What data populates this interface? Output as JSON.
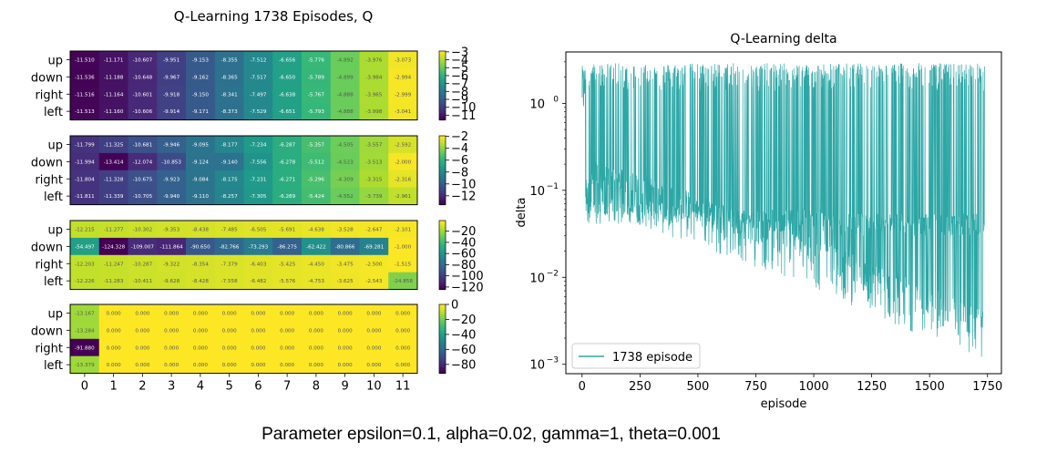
{
  "chart_data": [
    {
      "type": "heatmap",
      "title": "Q-Learning 1738 Episodes, Q",
      "row_labels": [
        "up",
        "down",
        "right",
        "left"
      ],
      "col_labels": [
        "0",
        "1",
        "2",
        "3",
        "4",
        "5",
        "6",
        "7",
        "8",
        "9",
        "10",
        "11"
      ],
      "panels": [
        {
          "name": "row-0",
          "colorbar_ticks": [
            "-3",
            "-4",
            "-5",
            "-6",
            "-7",
            "-8",
            "-9",
            "-10",
            "-11"
          ],
          "vmin": -11.6,
          "vmax": -2.9,
          "values": [
            [
              -11.51,
              -11.171,
              -10.607,
              -9.951,
              -9.153,
              -8.355,
              -7.512,
              -6.656,
              -5.776,
              -4.892,
              -3.976,
              -3.073
            ],
            [
              -11.536,
              -11.188,
              -10.648,
              -9.967,
              -9.162,
              -8.365,
              -7.517,
              -6.65,
              -5.789,
              -4.899,
              -3.984,
              -2.994
            ],
            [
              -11.516,
              -11.164,
              -10.601,
              -9.918,
              -9.15,
              -8.341,
              -7.497,
              -6.638,
              -5.767,
              -4.888,
              -3.965,
              -2.999
            ],
            [
              -11.513,
              -11.16,
              -10.606,
              -9.914,
              -9.171,
              -8.373,
              -7.529,
              -6.651,
              -5.793,
              -4.888,
              -3.998,
              -3.041
            ]
          ],
          "labels": [
            [
              "-11.510",
              "-11.171",
              "-10.607",
              "-9.951",
              "-9.153",
              "-8.355",
              "-7.512",
              "-6.656",
              "-5.776",
              "-4.892",
              "-3.976",
              "-3.073"
            ],
            [
              "-11.536",
              "-11.188",
              "-10.648",
              "-9.967",
              "-9.162",
              "-8.365",
              "-7.517",
              "-6.650",
              "-5.789",
              "-4.899",
              "-3.984",
              "-2.994"
            ],
            [
              "-11.516",
              "-11.164",
              "-10.601",
              "-9.918",
              "-9.150",
              "-8.341",
              "-7.497",
              "-6.638",
              "-5.767",
              "-4.888",
              "-3.965",
              "-2.999"
            ],
            [
              "-11.513",
              "-11.160",
              "-10.606",
              "-9.914",
              "-9.171",
              "-8.373",
              "-7.529",
              "-6.651",
              "-5.793",
              "-4.888",
              "-3.998",
              "-3.041"
            ]
          ]
        },
        {
          "name": "row-1",
          "colorbar_ticks": [
            "-2",
            "-4",
            "-6",
            "-8",
            "-10",
            "-12"
          ],
          "vmin": -13.5,
          "vmax": -1.9,
          "values": [
            [
              -11.799,
              -11.325,
              -10.681,
              -9.946,
              -9.095,
              -8.177,
              -7.234,
              -6.287,
              -5.357,
              -4.505,
              -3.557,
              -2.592
            ],
            [
              -11.994,
              -13.414,
              -12.074,
              -10.853,
              -9.124,
              -9.14,
              -7.556,
              -6.278,
              -5.512,
              -4.523,
              -3.513,
              -2.0
            ],
            [
              -11.804,
              -11.328,
              -10.675,
              -9.923,
              -9.084,
              -8.175,
              -7.231,
              -6.271,
              -5.296,
              -4.309,
              -3.315,
              -2.316
            ],
            [
              -11.811,
              -11.339,
              -10.705,
              -9.94,
              -9.11,
              -8.257,
              -7.305,
              -6.289,
              -5.424,
              -4.552,
              -3.739,
              -2.961
            ]
          ],
          "labels": [
            [
              "-11.799",
              "-11.325",
              "-10.681",
              "-9.946",
              "-9.095",
              "-8.177",
              "-7.234",
              "-6.287",
              "-5.357",
              "-4.505",
              "-3.557",
              "-2.592"
            ],
            [
              "-11.994",
              "-13.414",
              "-12.074",
              "-10.853",
              "-9.124",
              "-9.140",
              "-7.556",
              "-6.278",
              "-5.512",
              "-4.523",
              "-3.513",
              "-2.000"
            ],
            [
              "-11.804",
              "-11.328",
              "-10.675",
              "-9.923",
              "-9.084",
              "-8.175",
              "-7.231",
              "-6.271",
              "-5.296",
              "-4.309",
              "-3.315",
              "-2.316"
            ],
            [
              "-11.811",
              "-11.339",
              "-10.705",
              "-9.940",
              "-9.110",
              "-8.257",
              "-7.305",
              "-6.289",
              "-5.424",
              "-4.552",
              "-3.739",
              "-2.961"
            ]
          ]
        },
        {
          "name": "row-2",
          "colorbar_ticks": [
            "-20",
            "-40",
            "-60",
            "-80",
            "-100",
            "-120"
          ],
          "vmin": -124.4,
          "vmax": -1.0,
          "values": [
            [
              -12.215,
              -11.277,
              -10.302,
              -9.353,
              -8.438,
              -7.485,
              -6.505,
              -5.691,
              -4.638,
              -3.528,
              -2.647,
              -2.101
            ],
            [
              -54.497,
              -124.328,
              -109.007,
              -111.864,
              -90.65,
              -82.766,
              -73.293,
              -86.275,
              -62.422,
              -80.866,
              -69.281,
              -1.0
            ],
            [
              -12.203,
              -11.247,
              -10.287,
              -9.322,
              -8.354,
              -7.379,
              -6.403,
              -5.425,
              -4.45,
              -3.475,
              -2.5,
              -1.515
            ],
            [
              -12.226,
              -11.283,
              -10.411,
              -9.628,
              -8.428,
              -7.558,
              -6.482,
              -5.576,
              -4.753,
              -3.625,
              -2.543,
              -24.858
            ]
          ],
          "labels": [
            [
              "-12.215",
              "-11.277",
              "-10.302",
              "-9.353",
              "-8.438",
              "-7.485",
              "-6.505",
              "-5.691",
              "-4.638",
              "-3.528",
              "-2.647",
              "-2.101"
            ],
            [
              "-54.497",
              "-124.328",
              "-109.007",
              "-111.864",
              "-90.650",
              "-82.766",
              "-73.293",
              "-86.275",
              "-62.422",
              "-80.866",
              "-69.281",
              "-1.000"
            ],
            [
              "-12.203",
              "-11.247",
              "-10.287",
              "-9.322",
              "-8.354",
              "-7.379",
              "-6.403",
              "-5.425",
              "-4.450",
              "-3.475",
              "-2.500",
              "-1.515"
            ],
            [
              "-12.226",
              "-11.283",
              "-10.411",
              "-9.628",
              "-8.428",
              "-7.558",
              "-6.482",
              "-5.576",
              "-4.753",
              "-3.625",
              "-2.543",
              "-24.858"
            ]
          ]
        },
        {
          "name": "row-3",
          "colorbar_ticks": [
            "0",
            "-20",
            "-40",
            "-60",
            "-80"
          ],
          "vmin": -91.9,
          "vmax": 0,
          "values": [
            [
              -13.167,
              0,
              0,
              0,
              0,
              0,
              0,
              0,
              0,
              0,
              0,
              0
            ],
            [
              -13.284,
              0,
              0,
              0,
              0,
              0,
              0,
              0,
              0,
              0,
              0,
              0
            ],
            [
              -91.88,
              0,
              0,
              0,
              0,
              0,
              0,
              0,
              0,
              0,
              0,
              0
            ],
            [
              -13.379,
              0,
              0,
              0,
              0,
              0,
              0,
              0,
              0,
              0,
              0,
              0
            ]
          ],
          "labels": [
            [
              "-13.167",
              "0.000",
              "0.000",
              "0.000",
              "0.000",
              "0.000",
              "0.000",
              "0.000",
              "0.000",
              "0.000",
              "0.000",
              "0.000"
            ],
            [
              "-13.284",
              "0.000",
              "0.000",
              "0.000",
              "0.000",
              "0.000",
              "0.000",
              "0.000",
              "0.000",
              "0.000",
              "0.000",
              "0.000"
            ],
            [
              "-91.880",
              "0.000",
              "0.000",
              "0.000",
              "0.000",
              "0.000",
              "0.000",
              "0.000",
              "0.000",
              "0.000",
              "0.000",
              "0.000"
            ],
            [
              "-13.379",
              "0.000",
              "0.000",
              "0.000",
              "0.000",
              "0.000",
              "0.000",
              "0.000",
              "0.000",
              "0.000",
              "0.000",
              "0.000"
            ]
          ]
        }
      ]
    },
    {
      "type": "line",
      "title": "Q-Learning delta",
      "xlabel": "episode",
      "ylabel": "delta",
      "yscale": "log",
      "xlim": [
        -70,
        1810
      ],
      "ylim": [
        0.00078,
        3.9
      ],
      "xticks": [
        0,
        250,
        500,
        750,
        1000,
        1250,
        1500,
        1750
      ],
      "yticks": [
        {
          "value": 1,
          "base": "10",
          "exp": "0"
        },
        {
          "value": 0.1,
          "base": "10",
          "exp": "−1"
        },
        {
          "value": 0.01,
          "base": "10",
          "exp": "−2"
        },
        {
          "value": 0.001,
          "base": "10",
          "exp": "−3"
        }
      ],
      "grid": false,
      "legend": {
        "position": "lower-left"
      },
      "series": [
        {
          "name": "1738 episode",
          "color": "#2ca7a6",
          "episodes": 1738,
          "description": "per-episode max delta; dense oscillation between ~0.04 and ~2.8, lower envelope falling from ~0.06 to ~0.001"
        }
      ]
    }
  ],
  "caption": "Parameter epsilon=0.1, alpha=0.02, gamma=1, theta=0.001"
}
